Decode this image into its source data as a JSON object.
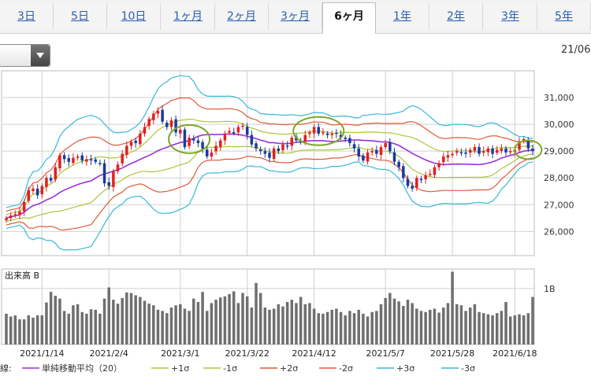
{
  "tabs": [
    {
      "label": "3日",
      "active": false
    },
    {
      "label": "5日",
      "active": false
    },
    {
      "label": "10日",
      "active": false
    },
    {
      "label": "1ヶ月",
      "active": false
    },
    {
      "label": "2ヶ月",
      "active": false
    },
    {
      "label": "3ヶ月",
      "active": false
    },
    {
      "label": "6ヶ月",
      "active": true
    },
    {
      "label": "1年",
      "active": false
    },
    {
      "label": "2年",
      "active": false
    },
    {
      "label": "3年",
      "active": false
    },
    {
      "label": "5年",
      "active": false
    }
  ],
  "header_date": "21/06",
  "volume_title": "出来高",
  "volume_label": "B",
  "legend_prefix": "線:",
  "chart_data": {
    "type": "candlestick",
    "y_ticks": [
      "31,000",
      "30,000",
      "29,000",
      "28,000",
      "27,000",
      "26,000"
    ],
    "y_tick_values": [
      31000,
      30000,
      29000,
      28000,
      27000,
      26000
    ],
    "ylim": [
      25100,
      32000
    ],
    "x_labels": [
      "2021/1/14",
      "2021/2/4",
      "2021/3/1",
      "2021/3/22",
      "2021/4/12",
      "2021/5/7",
      "2021/5/28",
      "2021/6/18"
    ],
    "x_label_index": [
      8,
      23,
      39,
      54,
      69,
      85,
      100,
      114
    ],
    "volume_ticks": [
      "1B"
    ],
    "volume_tick_values": [
      1.0
    ],
    "volume_max": 1.35,
    "legend": [
      {
        "name": "単純移動平均（20）",
        "color": "#9b30d9"
      },
      {
        "name": "+1σ",
        "color": "#a8c83c"
      },
      {
        "name": "-1σ",
        "color": "#a8c83c"
      },
      {
        "name": "+2σ",
        "color": "#e05a3a"
      },
      {
        "name": "-2σ",
        "color": "#e05a3a"
      },
      {
        "name": "+3σ",
        "color": "#39b9d6"
      },
      {
        "name": "-3σ",
        "color": "#39b9d6"
      }
    ],
    "up_color": "#e02020",
    "down_color": "#1a3a9c",
    "highlight_color": "#7aa82a",
    "highlights": [
      {
        "index": 41,
        "value": 29450
      },
      {
        "index": 70,
        "value": 29750
      },
      {
        "index": 117,
        "value": 29050
      }
    ],
    "close": [
      26500,
      26600,
      26650,
      26750,
      27100,
      27550,
      27600,
      27350,
      27700,
      28000,
      27900,
      28400,
      28850,
      28700,
      28600,
      28750,
      28800,
      28650,
      28700,
      28650,
      28600,
      28550,
      27800,
      27700,
      28250,
      28500,
      28900,
      29200,
      29350,
      29300,
      29650,
      29900,
      30200,
      30400,
      30500,
      30100,
      29900,
      30150,
      29700,
      29800,
      29150,
      29500,
      29400,
      29300,
      29100,
      28800,
      28950,
      29200,
      29400,
      29650,
      29750,
      29700,
      29900,
      29950,
      29600,
      29250,
      29100,
      29000,
      28900,
      28750,
      29100,
      29000,
      29250,
      29200,
      29500,
      29400,
      29350,
      29600,
      29700,
      29900,
      29650,
      29700,
      29600,
      29650,
      29650,
      29500,
      29450,
      29300,
      29100,
      28800,
      28650,
      28950,
      29000,
      28900,
      29150,
      29300,
      29000,
      28600,
      28400,
      28000,
      27700,
      27600,
      28000,
      27950,
      28100,
      28150,
      28400,
      28550,
      28800,
      28850,
      28900,
      29000,
      28950,
      28900,
      29050,
      29150,
      28900,
      29000,
      29100,
      28900,
      29050,
      29100,
      28950,
      29000,
      29050,
      29350,
      29450,
      29100,
      29000
    ],
    "volume": [
      0.55,
      0.5,
      0.52,
      0.45,
      0.45,
      0.52,
      0.48,
      0.52,
      0.52,
      0.75,
      0.94,
      0.87,
      0.82,
      0.6,
      0.55,
      0.7,
      0.72,
      0.58,
      0.55,
      0.63,
      0.62,
      0.55,
      0.82,
      1.02,
      0.8,
      0.73,
      0.83,
      0.93,
      0.92,
      0.88,
      0.85,
      0.78,
      0.73,
      0.7,
      0.62,
      0.6,
      0.56,
      0.66,
      0.7,
      0.72,
      0.64,
      0.6,
      0.82,
      0.76,
      0.94,
      0.6,
      0.74,
      0.8,
      0.84,
      0.86,
      0.9,
      0.95,
      0.74,
      0.92,
      0.86,
      0.66,
      1.1,
      0.92,
      0.66,
      0.62,
      0.64,
      0.72,
      0.68,
      0.76,
      0.8,
      0.74,
      0.85,
      0.72,
      0.74,
      0.64,
      0.56,
      0.55,
      0.58,
      0.62,
      0.64,
      0.58,
      0.52,
      0.6,
      0.56,
      0.62,
      0.55,
      0.5,
      0.58,
      0.6,
      0.72,
      0.83,
      0.92,
      0.82,
      0.77,
      0.69,
      0.8,
      0.74,
      0.64,
      0.6,
      0.58,
      0.62,
      0.64,
      0.57,
      0.66,
      0.74,
      1.3,
      0.72,
      0.7,
      0.6,
      0.66,
      0.72,
      0.58,
      0.56,
      0.54,
      0.52,
      0.56,
      0.6,
      0.76,
      0.5,
      0.52,
      0.54,
      0.52,
      0.56,
      0.85
    ]
  }
}
